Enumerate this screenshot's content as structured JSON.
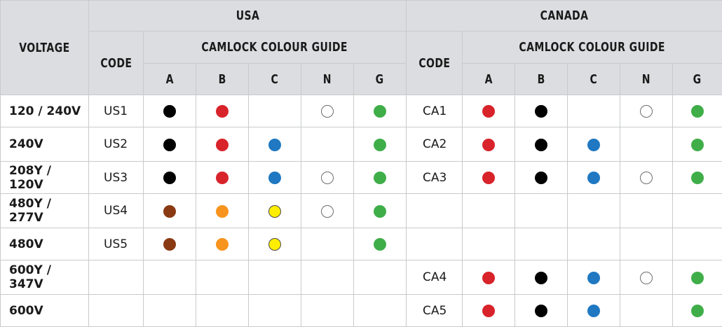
{
  "header": {
    "voltage": "VOLTAGE",
    "usa": "USA",
    "canada": "CANADA",
    "code": "CODE",
    "guide": "CAMLOCK COLOUR GUIDE",
    "phases": [
      "A",
      "B",
      "C",
      "N",
      "G"
    ]
  },
  "colors": {
    "black": "#000000",
    "red": "#d8232a",
    "blue": "#1f78c1",
    "white": "#ffffff",
    "green": "#3fae49",
    "brown": "#8a3a12",
    "orange": "#f7941d",
    "yellow": "#ffee00",
    "header_bg": "#dcdde0"
  },
  "rows": [
    {
      "voltage": "120 / 240V",
      "us_code": "US1",
      "us": [
        "black",
        "red",
        "",
        "white",
        "green"
      ],
      "ca_code": "CA1",
      "ca": [
        "red",
        "black",
        "",
        "white",
        "green"
      ]
    },
    {
      "voltage": "240V",
      "us_code": "US2",
      "us": [
        "black",
        "red",
        "blue",
        "",
        "green"
      ],
      "ca_code": "CA2",
      "ca": [
        "red",
        "black",
        "blue",
        "",
        "green"
      ]
    },
    {
      "voltage": "208Y / 120V",
      "us_code": "US3",
      "us": [
        "black",
        "red",
        "blue",
        "white",
        "green"
      ],
      "ca_code": "CA3",
      "ca": [
        "red",
        "black",
        "blue",
        "white",
        "green"
      ]
    },
    {
      "voltage": "480Y / 277V",
      "us_code": "US4",
      "us": [
        "brown",
        "orange",
        "yellow",
        "white",
        "green"
      ],
      "ca_code": "",
      "ca": [
        "",
        "",
        "",
        "",
        ""
      ]
    },
    {
      "voltage": "480V",
      "us_code": "US5",
      "us": [
        "brown",
        "orange",
        "yellow",
        "",
        "green"
      ],
      "ca_code": "",
      "ca": [
        "",
        "",
        "",
        "",
        ""
      ]
    },
    {
      "voltage": "600Y / 347V",
      "us_code": "",
      "us": [
        "",
        "",
        "",
        "",
        ""
      ],
      "ca_code": "CA4",
      "ca": [
        "red",
        "black",
        "blue",
        "white",
        "green"
      ]
    },
    {
      "voltage": "600V",
      "us_code": "",
      "us": [
        "",
        "",
        "",
        "",
        ""
      ],
      "ca_code": "CA5",
      "ca": [
        "red",
        "black",
        "blue",
        "",
        "green"
      ]
    }
  ]
}
